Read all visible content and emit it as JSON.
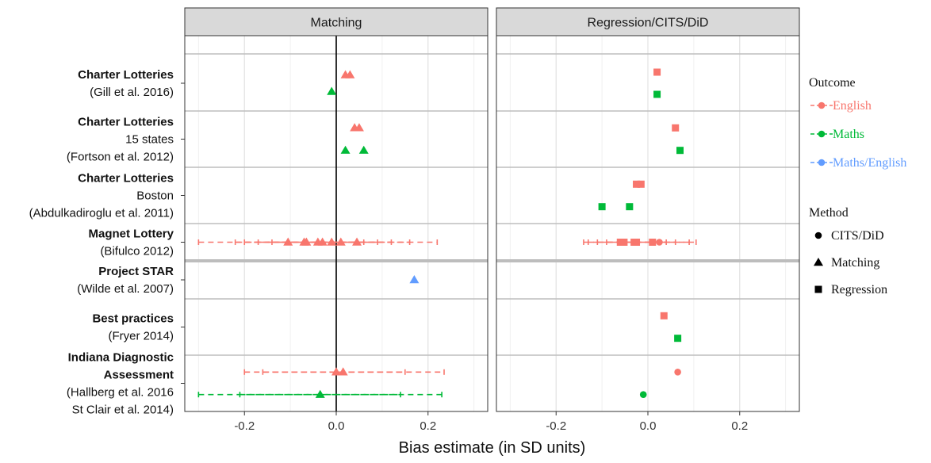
{
  "chart_data": {
    "type": "scatter",
    "xlabel": "Bias estimate (in SD units)",
    "xlim": [
      -0.33,
      0.33
    ],
    "x_ticks": [
      -0.2,
      0.0,
      0.2
    ],
    "x_tick_labels": [
      "-0.2",
      "0.0",
      "0.2"
    ],
    "grid": true,
    "panels": [
      {
        "id": "matching",
        "title": "Matching"
      },
      {
        "id": "regression",
        "title": "Regression/CITS/DiD"
      }
    ],
    "studies": [
      {
        "id": "gill",
        "lines": [
          {
            "text": "Charter Lotteries",
            "bold": true
          },
          {
            "text": "(Gill et al. 2016)",
            "bold": false
          }
        ]
      },
      {
        "id": "fortson",
        "lines": [
          {
            "text": "Charter Lotteries",
            "bold": true
          },
          {
            "text": "15 states",
            "bold": false
          },
          {
            "text": "(Fortson et al. 2012)",
            "bold": false
          }
        ]
      },
      {
        "id": "abdul",
        "lines": [
          {
            "text": "Charter Lotteries",
            "bold": true
          },
          {
            "text": "Boston",
            "bold": false
          },
          {
            "text": "(Abdulkadiroglu et al. 2011)",
            "bold": false
          }
        ]
      },
      {
        "id": "bifulco",
        "lines": [
          {
            "text": "Magnet Lottery",
            "bold": true
          },
          {
            "text": "(Bifulco 2012)",
            "bold": false
          }
        ]
      },
      {
        "id": "wilde",
        "lines": [
          {
            "text": "Project STAR",
            "bold": true
          },
          {
            "text": "(Wilde et al. 2007)",
            "bold": false
          }
        ]
      },
      {
        "id": "fryer",
        "lines": [
          {
            "text": "Best practices",
            "bold": true
          },
          {
            "text": "(Fryer 2014)",
            "bold": false
          }
        ]
      },
      {
        "id": "indiana",
        "lines": [
          {
            "text": "Indiana Diagnostic",
            "bold": true
          },
          {
            "text": "Assessment",
            "bold": true
          },
          {
            "text": "(Hallberg et al. 2016",
            "bold": false
          },
          {
            "text": "St Clair et al. 2014)",
            "bold": false
          }
        ]
      }
    ],
    "outcomes": [
      {
        "name": "English",
        "color": "#F8766D"
      },
      {
        "name": "Maths",
        "color": "#00BA38"
      },
      {
        "name": "Maths/English",
        "color": "#619CFF"
      }
    ],
    "methods": [
      {
        "name": "CITS/DiD",
        "shape": "circle"
      },
      {
        "name": "Matching",
        "shape": "triangle"
      },
      {
        "name": "Regression",
        "shape": "square"
      }
    ],
    "legend": {
      "outcome_title": "Outcome",
      "method_title": "Method",
      "position": "right"
    },
    "points": [
      {
        "panel": "matching",
        "study": "gill",
        "row": 0.35,
        "x": 0.02,
        "outcome": "English",
        "method": "Matching"
      },
      {
        "panel": "matching",
        "study": "gill",
        "row": 0.35,
        "x": 0.03,
        "outcome": "English",
        "method": "Matching"
      },
      {
        "panel": "matching",
        "study": "gill",
        "row": 0.65,
        "x": -0.01,
        "outcome": "Maths",
        "method": "Matching"
      },
      {
        "panel": "matching",
        "study": "fortson",
        "row": 0.3,
        "x": 0.04,
        "outcome": "English",
        "method": "Matching"
      },
      {
        "panel": "matching",
        "study": "fortson",
        "row": 0.3,
        "x": 0.05,
        "outcome": "English",
        "method": "Matching"
      },
      {
        "panel": "matching",
        "study": "fortson",
        "row": 0.7,
        "x": 0.02,
        "outcome": "Maths",
        "method": "Matching"
      },
      {
        "panel": "matching",
        "study": "fortson",
        "row": 0.7,
        "x": 0.06,
        "outcome": "Maths",
        "method": "Matching"
      },
      {
        "panel": "matching",
        "study": "bifulco",
        "row": 0.5,
        "x": -0.105,
        "outcome": "English",
        "method": "Matching"
      },
      {
        "panel": "matching",
        "study": "bifulco",
        "row": 0.5,
        "x": -0.07,
        "outcome": "English",
        "method": "Matching"
      },
      {
        "panel": "matching",
        "study": "bifulco",
        "row": 0.5,
        "x": -0.065,
        "outcome": "English",
        "method": "Matching"
      },
      {
        "panel": "matching",
        "study": "bifulco",
        "row": 0.5,
        "x": -0.04,
        "outcome": "English",
        "method": "Matching"
      },
      {
        "panel": "matching",
        "study": "bifulco",
        "row": 0.5,
        "x": -0.03,
        "outcome": "English",
        "method": "Matching"
      },
      {
        "panel": "matching",
        "study": "bifulco",
        "row": 0.5,
        "x": -0.01,
        "outcome": "English",
        "method": "Matching"
      },
      {
        "panel": "matching",
        "study": "bifulco",
        "row": 0.5,
        "x": 0.01,
        "outcome": "English",
        "method": "Matching"
      },
      {
        "panel": "matching",
        "study": "bifulco",
        "row": 0.5,
        "x": 0.045,
        "outcome": "English",
        "method": "Matching"
      },
      {
        "panel": "matching",
        "study": "wilde",
        "row": 0.5,
        "x": 0.17,
        "outcome": "Maths/English",
        "method": "Matching"
      },
      {
        "panel": "matching",
        "study": "indiana",
        "row": 0.3,
        "x": 0.0,
        "outcome": "English",
        "method": "Matching"
      },
      {
        "panel": "matching",
        "study": "indiana",
        "row": 0.3,
        "x": 0.015,
        "outcome": "English",
        "method": "Matching"
      },
      {
        "panel": "matching",
        "study": "indiana",
        "row": 0.7,
        "x": -0.035,
        "outcome": "Maths",
        "method": "Matching"
      },
      {
        "panel": "regression",
        "study": "gill",
        "row": 0.3,
        "x": 0.02,
        "outcome": "English",
        "method": "Regression"
      },
      {
        "panel": "regression",
        "study": "gill",
        "row": 0.7,
        "x": 0.02,
        "outcome": "Maths",
        "method": "Regression"
      },
      {
        "panel": "regression",
        "study": "fortson",
        "row": 0.3,
        "x": 0.06,
        "outcome": "English",
        "method": "Regression"
      },
      {
        "panel": "regression",
        "study": "fortson",
        "row": 0.7,
        "x": 0.07,
        "outcome": "Maths",
        "method": "Regression"
      },
      {
        "panel": "regression",
        "study": "abdul",
        "row": 0.3,
        "x": -0.025,
        "outcome": "English",
        "method": "Regression"
      },
      {
        "panel": "regression",
        "study": "abdul",
        "row": 0.3,
        "x": -0.015,
        "outcome": "English",
        "method": "Regression"
      },
      {
        "panel": "regression",
        "study": "abdul",
        "row": 0.7,
        "x": -0.1,
        "outcome": "Maths",
        "method": "Regression"
      },
      {
        "panel": "regression",
        "study": "abdul",
        "row": 0.7,
        "x": -0.04,
        "outcome": "Maths",
        "method": "Regression"
      },
      {
        "panel": "regression",
        "study": "bifulco",
        "row": 0.5,
        "x": -0.06,
        "outcome": "English",
        "method": "Regression"
      },
      {
        "panel": "regression",
        "study": "bifulco",
        "row": 0.5,
        "x": -0.052,
        "outcome": "English",
        "method": "Regression"
      },
      {
        "panel": "regression",
        "study": "bifulco",
        "row": 0.5,
        "x": -0.03,
        "outcome": "English",
        "method": "Regression"
      },
      {
        "panel": "regression",
        "study": "bifulco",
        "row": 0.5,
        "x": -0.025,
        "outcome": "English",
        "method": "Regression"
      },
      {
        "panel": "regression",
        "study": "bifulco",
        "row": 0.5,
        "x": 0.01,
        "outcome": "English",
        "method": "Regression"
      },
      {
        "panel": "regression",
        "study": "bifulco",
        "row": 0.5,
        "x": 0.025,
        "outcome": "English",
        "method": "CITS/DiD"
      },
      {
        "panel": "regression",
        "study": "fryer",
        "row": 0.3,
        "x": 0.035,
        "outcome": "English",
        "method": "Regression"
      },
      {
        "panel": "regression",
        "study": "fryer",
        "row": 0.7,
        "x": 0.065,
        "outcome": "Maths",
        "method": "Regression"
      },
      {
        "panel": "regression",
        "study": "indiana",
        "row": 0.3,
        "x": 0.065,
        "outcome": "English",
        "method": "CITS/DiD"
      },
      {
        "panel": "regression",
        "study": "indiana",
        "row": 0.7,
        "x": -0.01,
        "outcome": "Maths",
        "method": "CITS/DiD"
      }
    ],
    "intervals": [
      {
        "panel": "matching",
        "study": "bifulco",
        "row": 0.5,
        "low": -0.3,
        "high": 0.22,
        "outcome": "English"
      },
      {
        "panel": "matching",
        "study": "bifulco",
        "row": 0.5,
        "low": -0.22,
        "high": 0.16,
        "outcome": "English"
      },
      {
        "panel": "matching",
        "study": "bifulco",
        "row": 0.5,
        "low": -0.2,
        "high": 0.12,
        "outcome": "English"
      },
      {
        "panel": "matching",
        "study": "bifulco",
        "row": 0.5,
        "low": -0.17,
        "high": 0.09,
        "outcome": "English"
      },
      {
        "panel": "matching",
        "study": "bifulco",
        "row": 0.5,
        "low": -0.14,
        "high": 0.06,
        "outcome": "English"
      },
      {
        "panel": "matching",
        "study": "indiana",
        "row": 0.3,
        "low": -0.2,
        "high": 0.235,
        "outcome": "English"
      },
      {
        "panel": "matching",
        "study": "indiana",
        "row": 0.3,
        "low": -0.16,
        "high": 0.15,
        "outcome": "English"
      },
      {
        "panel": "matching",
        "study": "indiana",
        "row": 0.7,
        "low": -0.3,
        "high": 0.23,
        "outcome": "Maths"
      },
      {
        "panel": "matching",
        "study": "indiana",
        "row": 0.7,
        "low": -0.21,
        "high": 0.14,
        "outcome": "Maths"
      },
      {
        "panel": "regression",
        "study": "bifulco",
        "row": 0.5,
        "low": -0.14,
        "high": 0.105,
        "outcome": "English"
      },
      {
        "panel": "regression",
        "study": "bifulco",
        "row": 0.5,
        "low": -0.13,
        "high": 0.09,
        "outcome": "English"
      },
      {
        "panel": "regression",
        "study": "bifulco",
        "row": 0.5,
        "low": -0.11,
        "high": 0.06,
        "outcome": "English"
      },
      {
        "panel": "regression",
        "study": "bifulco",
        "row": 0.5,
        "low": -0.09,
        "high": 0.04,
        "outcome": "English"
      }
    ]
  }
}
